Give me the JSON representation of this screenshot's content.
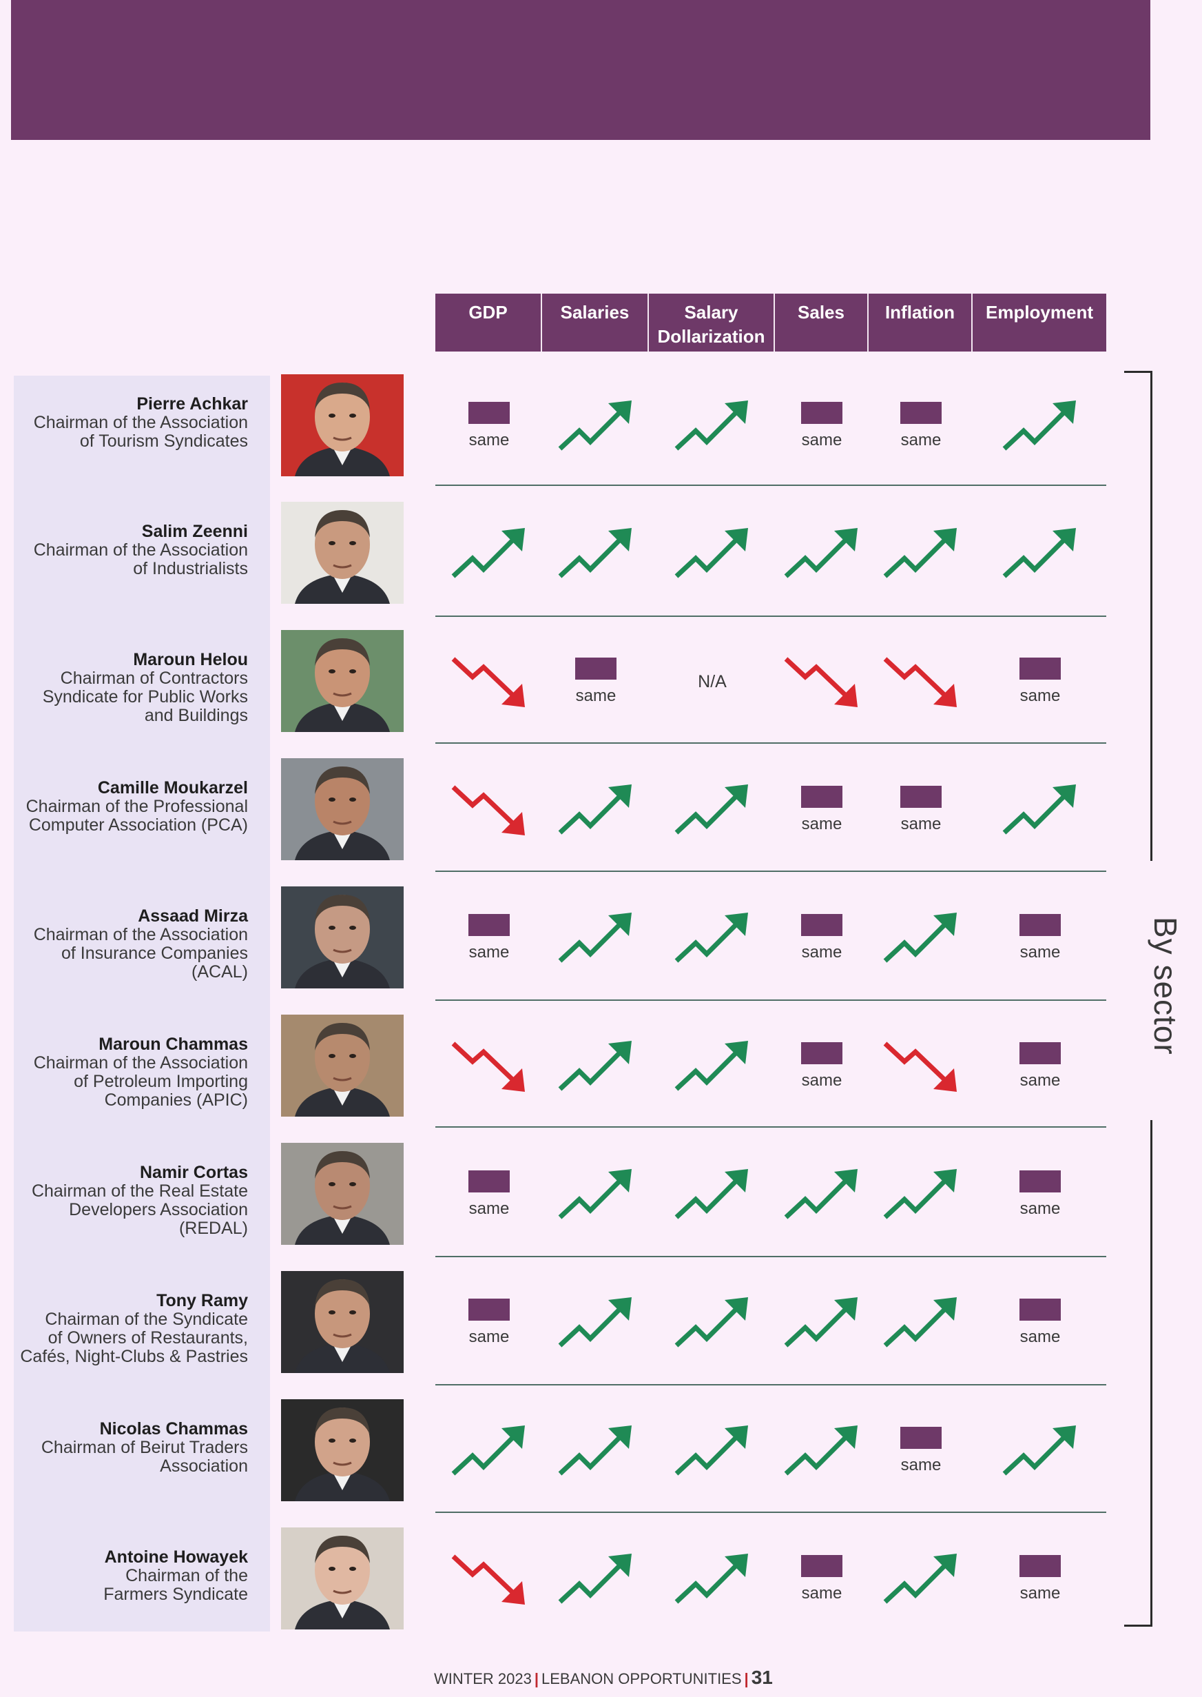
{
  "columns": [
    "GDP",
    "Salaries",
    "Salary Dollarization",
    "Sales",
    "Inflation",
    "Employment"
  ],
  "legend": {
    "same": "same",
    "na": "N/A"
  },
  "colors": {
    "purple": "#6e3968",
    "up": "#1f8a55",
    "down": "#d9282f"
  },
  "people": [
    {
      "name": "Pierre Achkar",
      "title": [
        "Chairman of the Association",
        "of Tourism Syndicates"
      ],
      "values": [
        "same",
        "up",
        "up",
        "same",
        "same",
        "up"
      ]
    },
    {
      "name": "Salim Zeenni",
      "title": [
        "Chairman of the Association",
        "of Industrialists"
      ],
      "values": [
        "up",
        "up",
        "up",
        "up",
        "up",
        "up"
      ]
    },
    {
      "name": "Maroun Helou",
      "title": [
        "Chairman of Contractors",
        "Syndicate for Public Works",
        "and Buildings"
      ],
      "values": [
        "down",
        "same",
        "na",
        "down",
        "down",
        "same"
      ]
    },
    {
      "name": "Camille Moukarzel",
      "title": [
        "Chairman of the Professional",
        "Computer Association (PCA)"
      ],
      "values": [
        "down",
        "up",
        "up",
        "same",
        "same",
        "up"
      ]
    },
    {
      "name": "Assaad Mirza",
      "title": [
        "Chairman of the Association",
        "of Insurance Companies",
        "(ACAL)"
      ],
      "values": [
        "same",
        "up",
        "up",
        "same",
        "up",
        "same"
      ]
    },
    {
      "name": "Maroun Chammas",
      "title": [
        "Chairman of the Association",
        "of Petroleum Importing",
        "Companies (APIC)"
      ],
      "values": [
        "down",
        "up",
        "up",
        "same",
        "down",
        "same"
      ]
    },
    {
      "name": "Namir Cortas",
      "title": [
        "Chairman of the Real Estate",
        "Developers Association",
        "(REDAL)"
      ],
      "values": [
        "same",
        "up",
        "up",
        "up",
        "up",
        "same"
      ]
    },
    {
      "name": "Tony Ramy",
      "title": [
        "Chairman of the Syndicate",
        "of Owners of Restaurants,",
        "Cafés, Night-Clubs & Pastries"
      ],
      "values": [
        "same",
        "up",
        "up",
        "up",
        "up",
        "same"
      ]
    },
    {
      "name": "Nicolas Chammas",
      "title": [
        "Chairman of Beirut Traders",
        "Association"
      ],
      "values": [
        "up",
        "up",
        "up",
        "up",
        "same",
        "up"
      ]
    },
    {
      "name": "Antoine Howayek",
      "title": [
        "Chairman of the",
        "Farmers Syndicate"
      ],
      "values": [
        "down",
        "up",
        "up",
        "same",
        "up",
        "same"
      ]
    }
  ],
  "side_label": "By sector",
  "footer": {
    "issue": "WINTER 2023",
    "magazine": "LEBANON OPPORTUNITIES",
    "page": "31"
  }
}
